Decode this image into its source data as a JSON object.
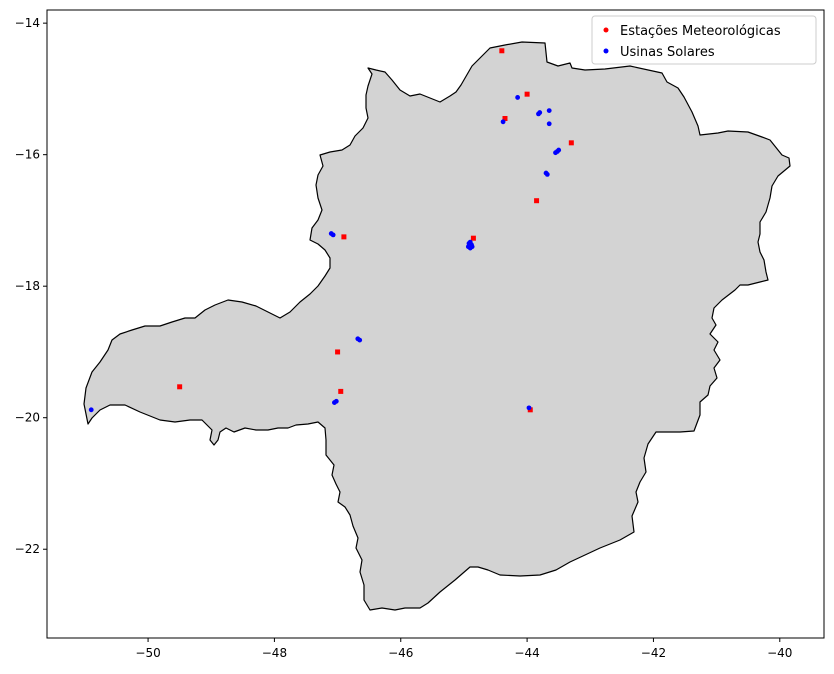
{
  "chart_data": {
    "type": "scatter",
    "title": "",
    "xlabel": "",
    "ylabel": "",
    "xlim": [
      -51.6,
      -39.3
    ],
    "ylim": [
      -23.35,
      -13.8
    ],
    "x_ticks": [
      -50,
      -48,
      -46,
      -44,
      -42,
      -40
    ],
    "y_ticks": [
      -14,
      -16,
      -18,
      -20,
      -22
    ],
    "x_tick_labels": [
      "−50",
      "−48",
      "−46",
      "−44",
      "−42",
      "−40"
    ],
    "y_tick_labels": [
      "−14",
      "−16",
      "−18",
      "−20",
      "−22"
    ],
    "grid": false,
    "legend_position": "top-right",
    "region_fill": "#d3d3d3",
    "region_stroke": "#000000",
    "series": [
      {
        "name": "Estações Meteorológicas",
        "color": "#ff0000",
        "marker": "square",
        "points": [
          [
            -44.4,
            -14.42
          ],
          [
            -44.0,
            -15.08
          ],
          [
            -44.35,
            -15.45
          ],
          [
            -43.3,
            -15.82
          ],
          [
            -43.85,
            -16.7
          ],
          [
            -44.85,
            -17.27
          ],
          [
            -46.9,
            -17.25
          ],
          [
            -47.0,
            -19.0
          ],
          [
            -49.5,
            -19.53
          ],
          [
            -46.95,
            -19.6
          ],
          [
            -43.95,
            -19.88
          ]
        ]
      },
      {
        "name": "Usinas Solares",
        "color": "#0000ff",
        "marker": "circle",
        "points": [
          [
            -44.15,
            -15.13
          ],
          [
            -43.82,
            -15.38
          ],
          [
            -43.8,
            -15.36
          ],
          [
            -43.65,
            -15.33
          ],
          [
            -44.38,
            -15.5
          ],
          [
            -43.65,
            -15.53
          ],
          [
            -43.5,
            -15.93
          ],
          [
            -43.55,
            -15.97
          ],
          [
            -43.52,
            -15.95
          ],
          [
            -43.68,
            -16.3
          ],
          [
            -43.7,
            -16.28
          ],
          [
            -44.9,
            -17.33
          ],
          [
            -44.92,
            -17.35
          ],
          [
            -44.88,
            -17.37
          ],
          [
            -44.93,
            -17.4
          ],
          [
            -44.9,
            -17.42
          ],
          [
            -44.87,
            -17.4
          ],
          [
            -47.07,
            -17.22
          ],
          [
            -47.1,
            -17.2
          ],
          [
            -46.65,
            -18.82
          ],
          [
            -46.68,
            -18.8
          ],
          [
            -47.05,
            -19.77
          ],
          [
            -47.02,
            -19.75
          ],
          [
            -50.9,
            -19.88
          ],
          [
            -43.97,
            -19.85
          ]
        ]
      }
    ]
  }
}
